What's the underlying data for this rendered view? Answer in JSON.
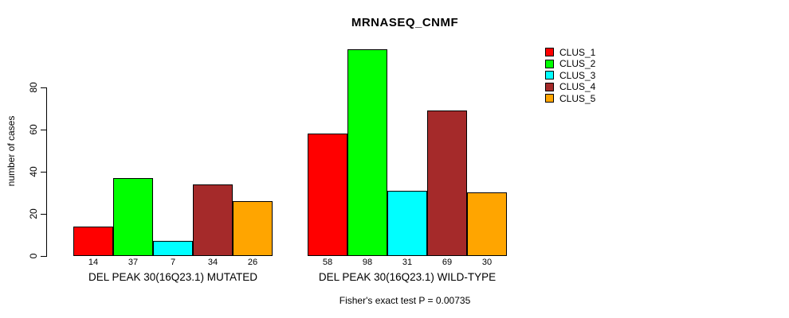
{
  "title": "MRNASEQ_CNMF",
  "caption": "Fisher's exact test P = 0.00735",
  "colors": {
    "background": "#FFFFFF",
    "axis": "#000000",
    "text": "#000000"
  },
  "chart_data": {
    "type": "bar",
    "title": "MRNASEQ_CNMF",
    "xlabel": "",
    "ylabel": "number of cases",
    "ylim": [
      0,
      80
    ],
    "yticks": [
      0,
      20,
      40,
      60,
      80
    ],
    "grid": false,
    "legend_position": "top-right-outside",
    "bar_value_labels_shown": true,
    "categories": [
      "DEL PEAK 30(16Q23.1) MUTATED",
      "DEL PEAK 30(16Q23.1) WILD-TYPE"
    ],
    "series": [
      {
        "name": "CLUS_1",
        "color": "#FF0000",
        "values": [
          14,
          58
        ]
      },
      {
        "name": "CLUS_2",
        "color": "#00FF00",
        "values": [
          37,
          98
        ]
      },
      {
        "name": "CLUS_3",
        "color": "#00FFFF",
        "values": [
          7,
          31
        ]
      },
      {
        "name": "CLUS_4",
        "color": "#A52A2A",
        "values": [
          34,
          69
        ]
      },
      {
        "name": "CLUS_5",
        "color": "#FFA500",
        "values": [
          26,
          30
        ]
      }
    ],
    "caption": "Fisher's exact test P = 0.00735"
  }
}
